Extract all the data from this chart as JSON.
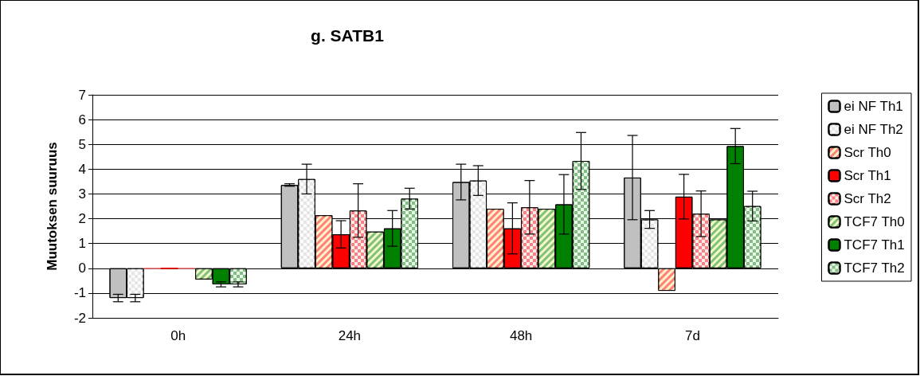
{
  "chart_data": {
    "type": "bar",
    "title": "g. SATB1",
    "ylabel": "Muutoksen suuruus",
    "categories": [
      "0h",
      "24h",
      "48h",
      "7d"
    ],
    "series": [
      {
        "name": "ei NF Th1",
        "color": "#c0c0c0",
        "values": [
          -1.2,
          3.36,
          3.48,
          3.66
        ],
        "errors": [
          0.15,
          0.05,
          0.72,
          1.7
        ]
      },
      {
        "name": "ei NF Th2",
        "color": "#e6e6e6",
        "values": [
          -1.2,
          3.6,
          3.54,
          1.97
        ],
        "errors": [
          0.15,
          0.6,
          0.6,
          0.36
        ]
      },
      {
        "name": "Scr Th0",
        "color": "#ff8080",
        "values": [
          0,
          2.14,
          2.4,
          -0.91
        ],
        "errors": [
          null,
          null,
          null,
          null
        ]
      },
      {
        "name": "Scr Th1",
        "color": "#ff0000",
        "values": [
          0,
          1.37,
          1.61,
          2.89
        ],
        "errors": [
          null,
          0.55,
          1.03,
          0.9
        ]
      },
      {
        "name": "Scr Th2",
        "color": "#ff8080",
        "values": [
          0,
          2.33,
          2.46,
          2.2
        ],
        "errors": [
          null,
          1.08,
          1.08,
          0.92
        ]
      },
      {
        "name": "TCF7 Th0",
        "color": "#80c080",
        "values": [
          -0.45,
          1.48,
          2.4,
          1.97
        ],
        "errors": [
          null,
          null,
          null,
          null
        ]
      },
      {
        "name": "TCF7 Th1",
        "color": "#008000",
        "values": [
          -0.65,
          1.61,
          2.58,
          4.93
        ],
        "errors": [
          0.1,
          0.72,
          1.2,
          0.71
        ]
      },
      {
        "name": "TCF7 Th2",
        "color": "#80c080",
        "values": [
          -0.65,
          2.81,
          4.33,
          2.51
        ],
        "errors": [
          0.1,
          0.42,
          1.15,
          0.6
        ]
      }
    ],
    "ylim": [
      -2,
      7
    ],
    "yticks": [
      -2,
      -1,
      0,
      1,
      2,
      3,
      4,
      5,
      6,
      7
    ],
    "grid": "y",
    "legend": "right"
  }
}
